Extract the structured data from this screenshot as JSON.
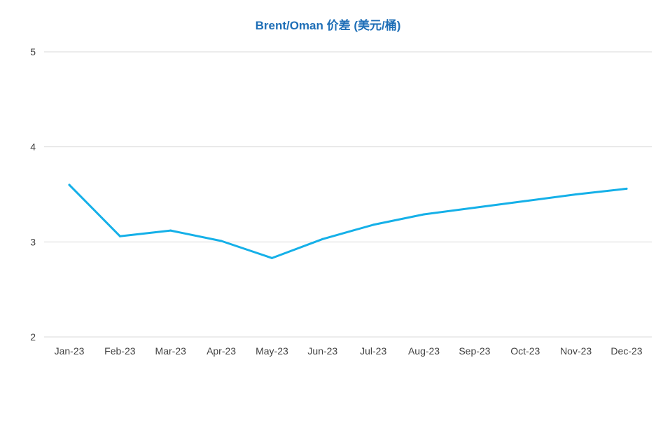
{
  "chart_data": {
    "type": "line",
    "title": "Brent/Oman 价差 (美元/桶)",
    "xlabel": "",
    "ylabel": "",
    "categories": [
      "Jan-23",
      "Feb-23",
      "Mar-23",
      "Apr-23",
      "May-23",
      "Jun-23",
      "Jul-23",
      "Aug-23",
      "Sep-23",
      "Oct-23",
      "Nov-23",
      "Dec-23"
    ],
    "series": [
      {
        "values": [
          3.6,
          3.06,
          3.12,
          3.01,
          2.83,
          3.03,
          3.18,
          3.29,
          3.36,
          3.43,
          3.5,
          3.56
        ],
        "color": "#15b0e8"
      }
    ],
    "ylim": [
      2,
      5
    ],
    "yticks": [
      2,
      3,
      4,
      5
    ],
    "grid": true,
    "legend": "none",
    "colors": {
      "title": "#1f6fb7",
      "line": "#15b0e8",
      "grid": "#d9d9d9",
      "tick_text": "#404040"
    }
  }
}
